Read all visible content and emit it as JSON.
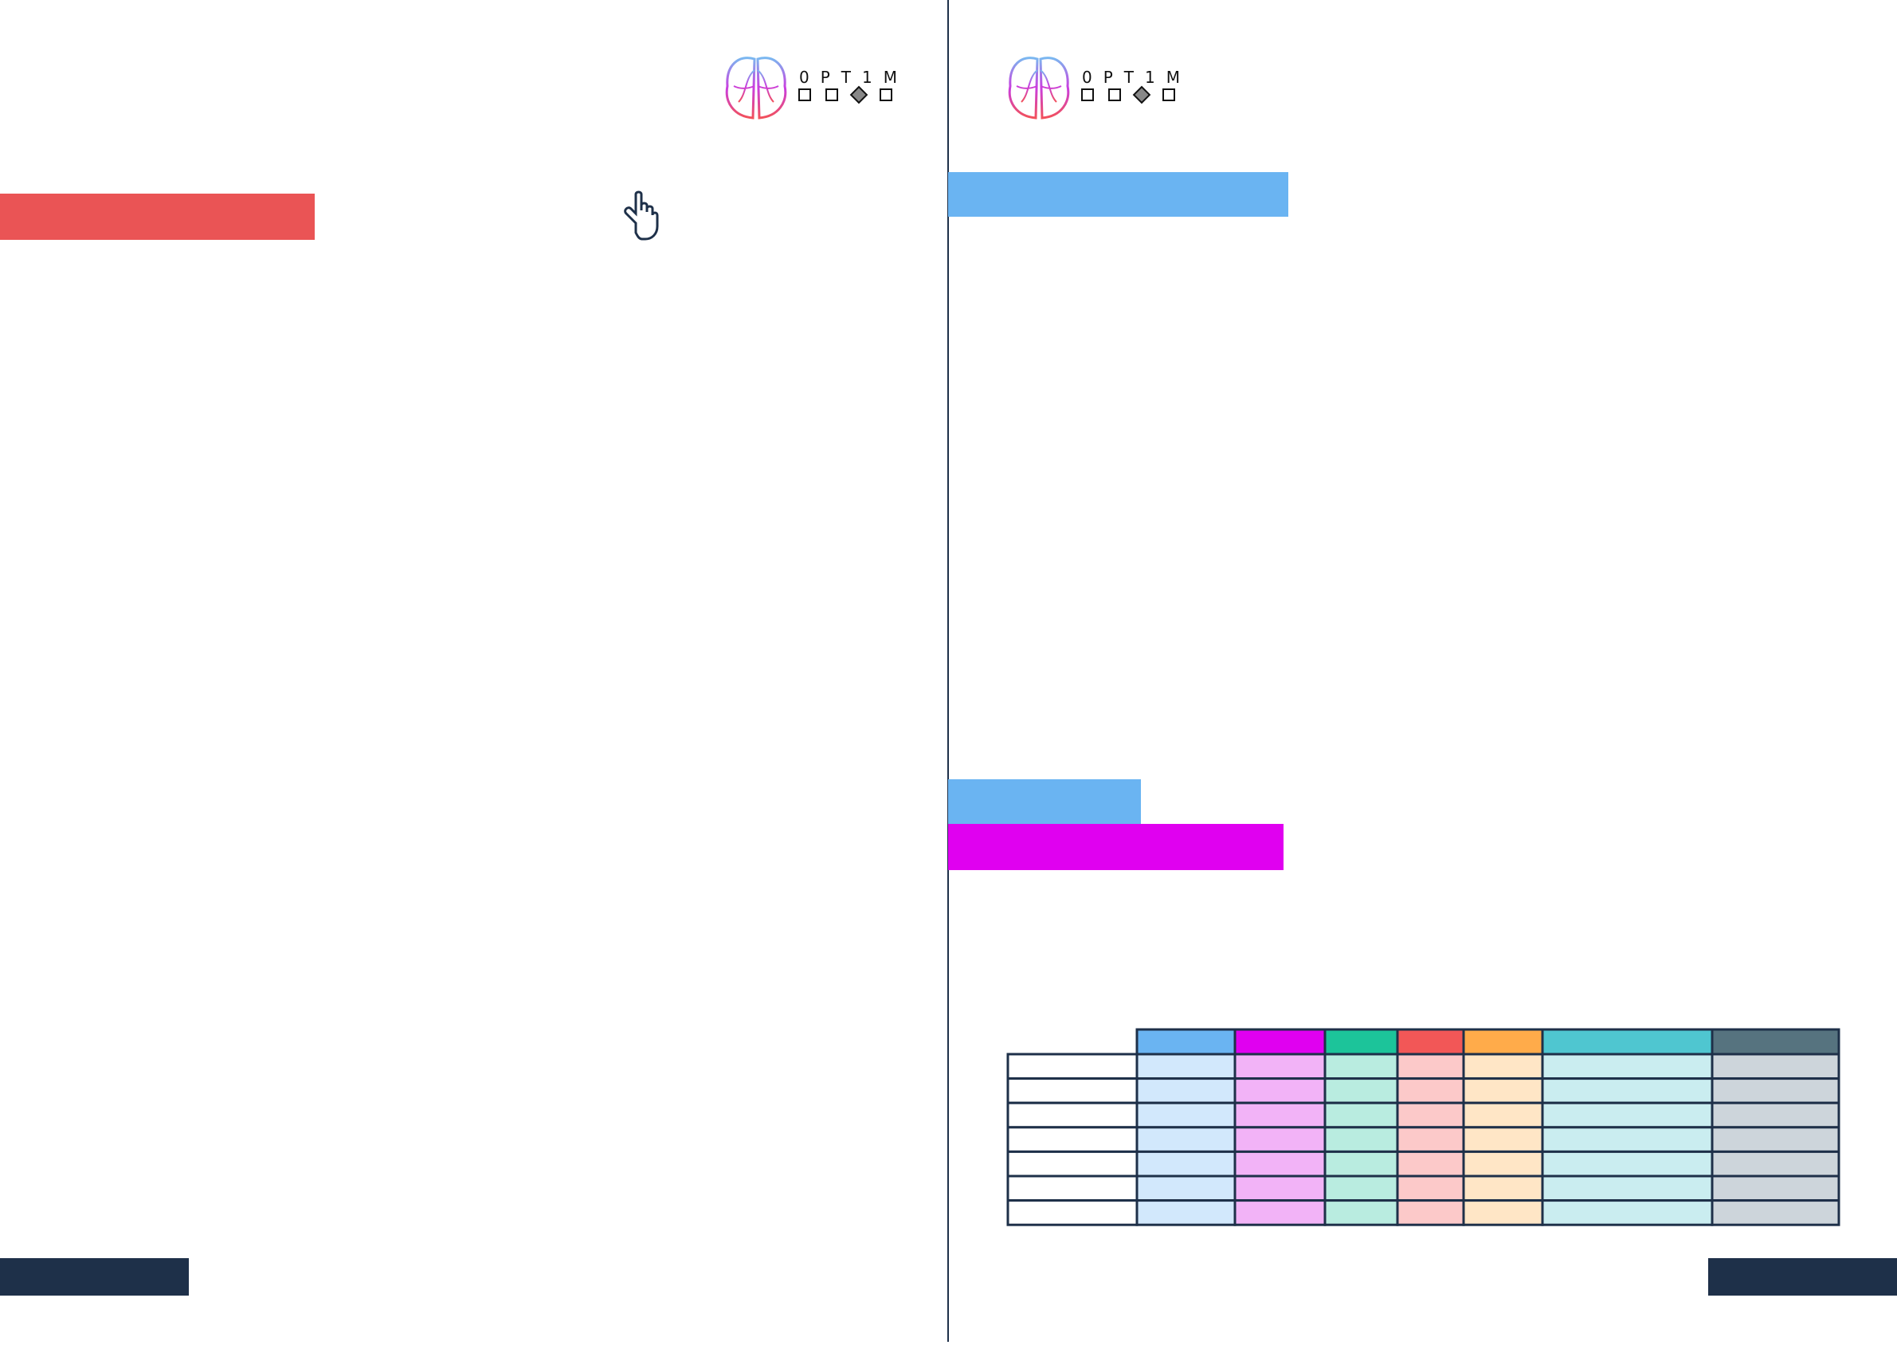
{
  "left_page": {
    "logo": "0PT1M"
  },
  "right_page": {
    "logo": "0PT1M"
  }
}
